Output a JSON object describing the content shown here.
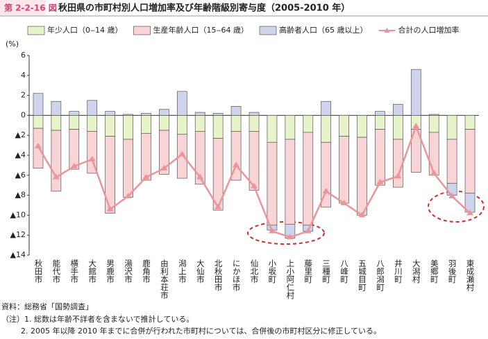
{
  "figure_label": "第 2-2-16 図",
  "chart_data": {
    "type": "bar",
    "stacked": true,
    "title": "秋田県の市町村別人口増加率及び年齢階級別寄与度（2005-2010 年）",
    "y_unit": "(%)",
    "categories": [
      "秋田市",
      "能代市",
      "横手市",
      "大館市",
      "男鹿市",
      "湯沢市",
      "鹿角市",
      "由利本荘市",
      "潟上市",
      "大仙市",
      "北秋田市",
      "にかほ市",
      "仙北市",
      "小坂町",
      "上小阿仁村",
      "藤里町",
      "三種町",
      "八峰町",
      "五城目町",
      "八郎潟町",
      "井川町",
      "大潟村",
      "美郷町",
      "羽後町",
      "東成瀬村"
    ],
    "series": [
      {
        "name": "年少人口（0‒14 歳）",
        "color": "#e7f3c9",
        "values": [
          -1.3,
          -1.5,
          -1.4,
          -1.6,
          -2.1,
          -2.4,
          -1.8,
          -1.5,
          -1.9,
          -1.6,
          -2.3,
          -1.6,
          -1.6,
          -2.7,
          -2.4,
          -1.7,
          -2.7,
          -2.1,
          -2.2,
          -1.4,
          -2.4,
          -1.4,
          -1.7,
          -2.4,
          -1.4
        ]
      },
      {
        "name": "生産年齢人口（15‒64 歳）",
        "color": "#f9d4d6",
        "values": [
          -4.0,
          -6.1,
          -4.0,
          -4.2,
          -7.7,
          -5.8,
          -4.7,
          -4.4,
          -4.4,
          -5.3,
          -7.2,
          -4.9,
          -5.9,
          -8.3,
          -8.5,
          -9.3,
          -6.5,
          -6.7,
          -7.8,
          -5.6,
          -4.8,
          -4.3,
          -4.3,
          -4.4,
          -6.4
        ]
      },
      {
        "name": "高齢者人口（65 歳以上）",
        "color": "#cfd4ec",
        "values": [
          2.2,
          1.4,
          0.4,
          1.5,
          0.4,
          0.1,
          0.2,
          0.6,
          2.4,
          0.3,
          0.2,
          0.9,
          0.3,
          -0.5,
          -1.4,
          -0.6,
          1.4,
          0,
          0,
          0.4,
          1.1,
          4.6,
          0.1,
          -1.2,
          -1.9
        ]
      },
      {
        "name": "合計の人口増加率",
        "type": "line",
        "color": "#eb9499",
        "values": [
          -3.1,
          -6.2,
          -5.1,
          -4.4,
          -9.4,
          -8.1,
          -6.2,
          -5.3,
          -3.9,
          -6.2,
          -9.2,
          -5.0,
          -7.1,
          -11.6,
          -12.2,
          -11.6,
          -7.6,
          -8.8,
          -10.0,
          -6.7,
          -6.1,
          -1.1,
          -5.8,
          -8.1,
          -9.8
        ]
      }
    ],
    "ylim": [
      -14,
      6
    ],
    "yticks": [
      {
        "value": -14,
        "label": "▲14"
      },
      {
        "value": -12,
        "label": "▲12"
      },
      {
        "value": -10,
        "label": "▲10"
      },
      {
        "value": -8,
        "label": "▲8"
      },
      {
        "value": -6,
        "label": "▲6"
      },
      {
        "value": -4,
        "label": "▲4"
      },
      {
        "value": -2,
        "label": "▲2"
      },
      0,
      2,
      4,
      6
    ],
    "legend": "top"
  },
  "source": "資料：総務省「国勢調査」",
  "notes": [
    "（注）1.  総数は年齢不詳者を含まないで推計している。",
    "2.  2005 年以降 2010 年までに合併が行われた市町村については、合併後の市町村区分に修正している。"
  ]
}
